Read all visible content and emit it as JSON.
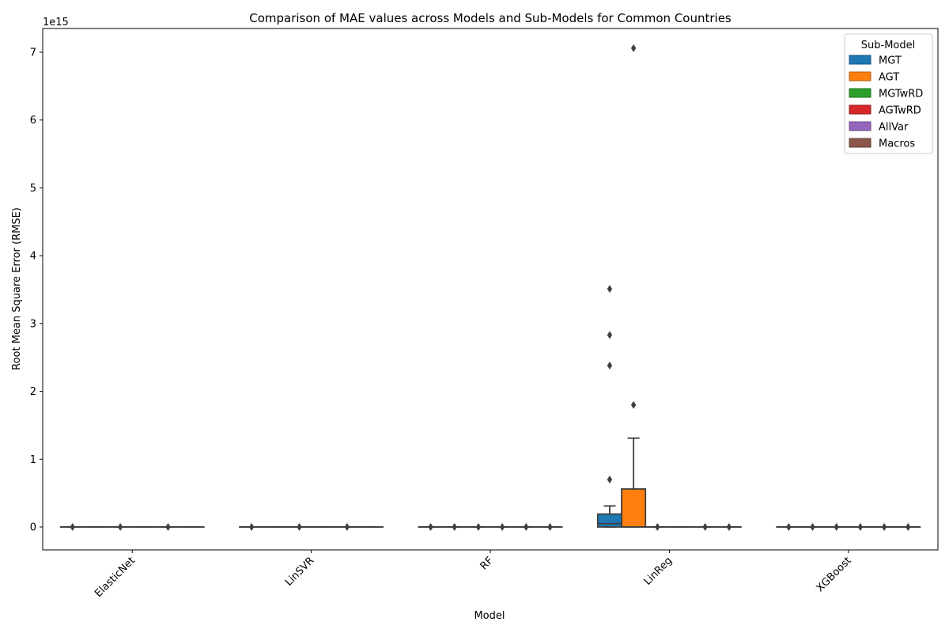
{
  "chart_data": {
    "type": "boxplot",
    "title": "Comparison of MAE values across Models and Sub-Models for Common Countries",
    "xlabel": "Model",
    "ylabel": "Root Mean Square Error (RMSE)",
    "y_offset_text": "1e15",
    "y_unit_multiplier": 1000000000000000.0,
    "ylim": [
      -0.36,
      7.42
    ],
    "yticks": [
      0,
      1,
      2,
      3,
      4,
      5,
      6,
      7
    ],
    "ytick_labels": [
      "0",
      "1",
      "2",
      "3",
      "4",
      "5",
      "6",
      "7"
    ],
    "categories": [
      "ElasticNet",
      "LinSVR",
      "RF",
      "LinReg",
      "XGBoost"
    ],
    "legend": {
      "title": "Sub-Model",
      "position": "top-right",
      "entries": [
        {
          "name": "MGT",
          "color": "#1f77b4"
        },
        {
          "name": "AGT",
          "color": "#ff7f0e"
        },
        {
          "name": "MGTwRD",
          "color": "#2ca02c"
        },
        {
          "name": "AGTwRD",
          "color": "#d62728"
        },
        {
          "name": "AllVar",
          "color": "#9467bd"
        },
        {
          "name": "Macros",
          "color": "#8c564b"
        }
      ]
    },
    "series": [
      {
        "name": "MGT",
        "boxes": [
          {
            "q1": 0,
            "median": 0,
            "q3": 0,
            "whislo": 0,
            "whishi": 0,
            "fliers": [
              0
            ]
          },
          {
            "q1": 0,
            "median": 0,
            "q3": 0,
            "whislo": 0,
            "whishi": 0,
            "fliers": [
              0
            ]
          },
          {
            "q1": 0,
            "median": 0,
            "q3": 0,
            "whislo": 0,
            "whishi": 0,
            "fliers": [
              0
            ]
          },
          {
            "q1": 0,
            "median": 0.05,
            "q3": 0.19,
            "whislo": 0,
            "whishi": 0.31,
            "fliers": [
              0.7,
              2.38,
              2.83,
              3.51
            ]
          },
          {
            "q1": 0,
            "median": 0,
            "q3": 0,
            "whislo": 0,
            "whishi": 0,
            "fliers": [
              0
            ]
          }
        ]
      },
      {
        "name": "AGT",
        "boxes": [
          {
            "q1": 0,
            "median": 0,
            "q3": 0,
            "whislo": 0,
            "whishi": 0,
            "fliers": []
          },
          {
            "q1": 0,
            "median": 0,
            "q3": 0,
            "whislo": 0,
            "whishi": 0,
            "fliers": []
          },
          {
            "q1": 0,
            "median": 0,
            "q3": 0,
            "whislo": 0,
            "whishi": 0,
            "fliers": [
              0
            ]
          },
          {
            "q1": 0,
            "median": 0,
            "q3": 0.56,
            "whislo": 0,
            "whishi": 1.31,
            "fliers": [
              1.8,
              7.06
            ]
          },
          {
            "q1": 0,
            "median": 0,
            "q3": 0,
            "whislo": 0,
            "whishi": 0,
            "fliers": [
              0
            ]
          }
        ]
      },
      {
        "name": "MGTwRD",
        "boxes": [
          {
            "q1": 0,
            "median": 0,
            "q3": 0,
            "whislo": 0,
            "whishi": 0,
            "fliers": [
              0
            ]
          },
          {
            "q1": 0,
            "median": 0,
            "q3": 0,
            "whislo": 0,
            "whishi": 0,
            "fliers": [
              0
            ]
          },
          {
            "q1": 0,
            "median": 0,
            "q3": 0,
            "whislo": 0,
            "whishi": 0,
            "fliers": [
              0
            ]
          },
          {
            "q1": 0,
            "median": 0,
            "q3": 0,
            "whislo": 0,
            "whishi": 0,
            "fliers": [
              0
            ]
          },
          {
            "q1": 0,
            "median": 0,
            "q3": 0,
            "whislo": 0,
            "whishi": 0,
            "fliers": [
              0
            ]
          }
        ]
      },
      {
        "name": "AGTwRD",
        "boxes": [
          {
            "q1": 0,
            "median": 0,
            "q3": 0,
            "whislo": 0,
            "whishi": 0,
            "fliers": []
          },
          {
            "q1": 0,
            "median": 0,
            "q3": 0,
            "whislo": 0,
            "whishi": 0,
            "fliers": []
          },
          {
            "q1": 0,
            "median": 0,
            "q3": 0,
            "whislo": 0,
            "whishi": 0,
            "fliers": [
              0
            ]
          },
          {
            "q1": 0,
            "median": 0,
            "q3": 0,
            "whislo": 0,
            "whishi": 0,
            "fliers": []
          },
          {
            "q1": 0,
            "median": 0,
            "q3": 0,
            "whislo": 0,
            "whishi": 0,
            "fliers": [
              0
            ]
          }
        ]
      },
      {
        "name": "AllVar",
        "boxes": [
          {
            "q1": 0,
            "median": 0,
            "q3": 0,
            "whislo": 0,
            "whishi": 0,
            "fliers": [
              0
            ]
          },
          {
            "q1": 0,
            "median": 0,
            "q3": 0,
            "whislo": 0,
            "whishi": 0,
            "fliers": [
              0
            ]
          },
          {
            "q1": 0,
            "median": 0,
            "q3": 0,
            "whislo": 0,
            "whishi": 0,
            "fliers": [
              0
            ]
          },
          {
            "q1": 0,
            "median": 0,
            "q3": 0,
            "whislo": 0,
            "whishi": 0,
            "fliers": [
              0
            ]
          },
          {
            "q1": 0,
            "median": 0,
            "q3": 0,
            "whislo": 0,
            "whishi": 0,
            "fliers": [
              0
            ]
          }
        ]
      },
      {
        "name": "Macros",
        "boxes": [
          {
            "q1": 0,
            "median": 0,
            "q3": 0,
            "whislo": 0,
            "whishi": 0,
            "fliers": []
          },
          {
            "q1": 0,
            "median": 0,
            "q3": 0,
            "whislo": 0,
            "whishi": 0,
            "fliers": []
          },
          {
            "q1": 0,
            "median": 0,
            "q3": 0,
            "whislo": 0,
            "whishi": 0,
            "fliers": [
              0
            ]
          },
          {
            "q1": 0,
            "median": 0,
            "q3": 0,
            "whislo": 0,
            "whishi": 0,
            "fliers": [
              0
            ]
          },
          {
            "q1": 0,
            "median": 0,
            "q3": 0,
            "whislo": 0,
            "whishi": 0,
            "fliers": [
              0
            ]
          }
        ]
      }
    ]
  }
}
